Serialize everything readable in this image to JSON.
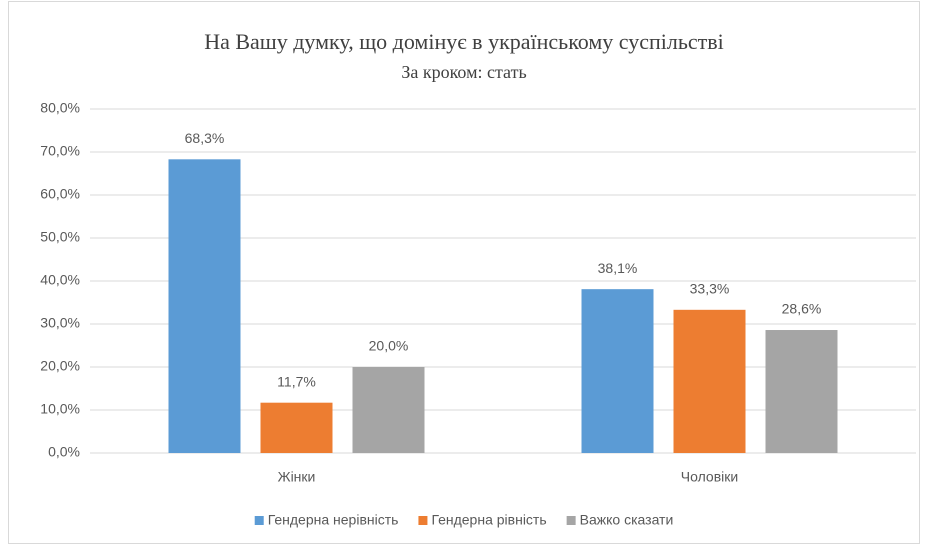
{
  "chart_data": {
    "type": "bar",
    "title": "На Вашу думку, що домінує в українському суспільстві",
    "subtitle": "За кроком: стать",
    "categories": [
      "Жінки",
      "Чоловіки"
    ],
    "series": [
      {
        "name": "Гендерна нерівність",
        "color": "#5b9bd5",
        "values": [
          68.3,
          38.1
        ],
        "value_labels": [
          "68,3%",
          "38,1%"
        ]
      },
      {
        "name": "Гендерна рівність",
        "color": "#ed7d31",
        "values": [
          11.7,
          33.3
        ],
        "value_labels": [
          "11,7%",
          "33,3%"
        ]
      },
      {
        "name": "Важко сказати",
        "color": "#a5a5a5",
        "values": [
          20.0,
          28.6
        ],
        "value_labels": [
          "20,0%",
          "28,6%"
        ]
      }
    ],
    "ylim": [
      0,
      80
    ],
    "yticks": [
      {
        "value": 0,
        "label": "0,0%"
      },
      {
        "value": 10,
        "label": "10,0%"
      },
      {
        "value": 20,
        "label": "20,0%"
      },
      {
        "value": 30,
        "label": "30,0%"
      },
      {
        "value": 40,
        "label": "40,0%"
      },
      {
        "value": 50,
        "label": "50,0%"
      },
      {
        "value": 60,
        "label": "60,0%"
      },
      {
        "value": 70,
        "label": "70,0%"
      },
      {
        "value": 80,
        "label": "80,0%"
      }
    ],
    "grid": true,
    "legend": "bottom"
  }
}
